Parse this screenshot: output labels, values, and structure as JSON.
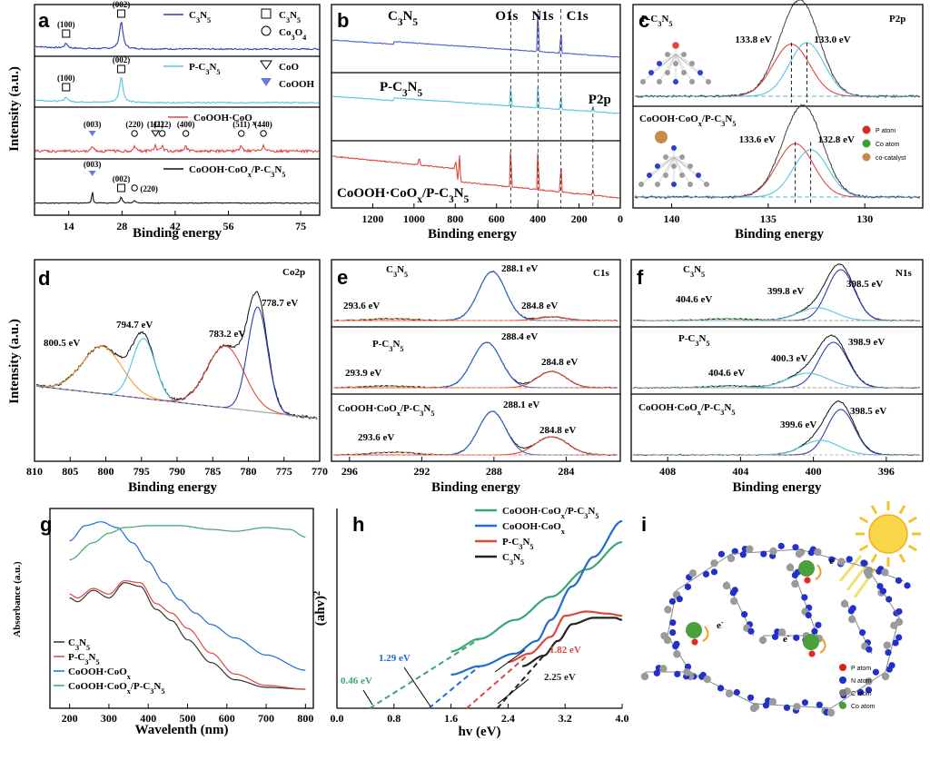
{
  "chart_data": [
    {
      "panel": "a",
      "type": "line",
      "xlabel": "Binding energy",
      "ylabel": "Intensity (a.u.)",
      "xlim": [
        5,
        80
      ],
      "xticks": [
        14,
        28,
        42,
        56,
        75
      ],
      "xticks_label": [
        "14",
        "28",
        "42",
        "56",
        "75"
      ],
      "stacks": [
        {
          "series": "C3N5",
          "color": "#2b3fb0",
          "peaks": [
            {
              "x": 13.3,
              "label": "(100)",
              "marker": "square"
            },
            {
              "x": 27.8,
              "label": "(002)",
              "marker": "square"
            }
          ],
          "legend": [
            {
              "text": "C3N5",
              "line": true
            },
            {
              "text": "C3N5",
              "marker": "square"
            },
            {
              "text": "Co3O4",
              "marker": "circle"
            }
          ]
        },
        {
          "series": "P-C3N5",
          "color": "#58c3e0",
          "peaks": [
            {
              "x": 13.3,
              "label": "(100)",
              "marker": "square"
            },
            {
              "x": 27.8,
              "label": "(002)",
              "marker": "square"
            }
          ],
          "legend": [
            {
              "text": "P-C3N5",
              "line": true
            },
            {
              "text": "CoO",
              "marker": "triangle"
            },
            {
              "text": "CoOOH",
              "marker": "triangle-filled"
            }
          ]
        },
        {
          "series": "CoOOH·CoOx",
          "color": "#e0463f",
          "peaks": [
            {
              "x": 20.2,
              "label": "(003)"
            },
            {
              "x": 31.3,
              "label": "(220)"
            },
            {
              "x": 36.8,
              "label": "(111)"
            },
            {
              "x": 38.6,
              "label": "(222)"
            },
            {
              "x": 44.8,
              "label": "(400)"
            },
            {
              "x": 59.4,
              "label": "(511)"
            },
            {
              "x": 65.2,
              "label": "(440)"
            }
          ],
          "legend": [
            {
              "text": "CoOOH·CoOx",
              "line": true
            }
          ]
        },
        {
          "series": "CoOOH·CoOx/P-C3N5",
          "color": "#111111",
          "peaks": [
            {
              "x": 20.2,
              "label": "(003)"
            },
            {
              "x": 27.8,
              "label": "(002)"
            },
            {
              "x": 31.3,
              "label": "(220)"
            }
          ],
          "legend": [
            {
              "text": "CoOOH·CoOx/P-C3N5",
              "line": true
            }
          ]
        }
      ]
    },
    {
      "panel": "b",
      "type": "line",
      "xlabel": "Binding energy",
      "xlim": [
        1400,
        0
      ],
      "xticks": [
        1200,
        1000,
        800,
        600,
        400,
        200,
        0
      ],
      "peak_markers": [
        {
          "x": 531,
          "label": "O1s"
        },
        {
          "x": 399,
          "label": "N1s"
        },
        {
          "x": 288,
          "label": "C1s"
        },
        {
          "x": 133,
          "label": "P2p"
        }
      ],
      "stacks": [
        {
          "series": "C3N5",
          "color": "#4a5fd0"
        },
        {
          "series": "P-C3N5",
          "color": "#58c3e0"
        },
        {
          "series": "CoOOH·CoOx/P-C3N5",
          "color": "#e0463f"
        }
      ]
    },
    {
      "panel": "c",
      "type": "line",
      "region": "P2p",
      "xlabel": "Binding energy",
      "xlim": [
        142,
        127
      ],
      "xticks": [
        140,
        135,
        130
      ],
      "stacks": [
        {
          "series": "P-C3N5",
          "components": [
            {
              "x": 133.8,
              "label": "133.8 eV",
              "color": "#e0463f"
            },
            {
              "x": 133.0,
              "label": "133.0 eV",
              "color": "#58c3e0"
            }
          ]
        },
        {
          "series": "CoOOH·CoOx/P-C3N5",
          "components": [
            {
              "x": 133.6,
              "label": "133.6 eV",
              "color": "#e0463f"
            },
            {
              "x": 132.8,
              "label": "132.8 eV",
              "color": "#58c3e0"
            }
          ]
        }
      ],
      "legend": [
        "P atom",
        "Co atom",
        "co-catalyst"
      ]
    },
    {
      "panel": "d",
      "type": "line",
      "region": "Co2p",
      "xlabel": "Binding energy",
      "ylabel": "Intensity (a.u.)",
      "xlim": [
        810,
        770
      ],
      "xticks": [
        810,
        805,
        800,
        795,
        790,
        785,
        780,
        775,
        770
      ],
      "peaks": [
        {
          "x": 800.5,
          "label": "800.5 eV",
          "color": "#f0a030"
        },
        {
          "x": 794.7,
          "label": "794.7 eV",
          "color": "#58c3e0"
        },
        {
          "x": 783.2,
          "label": "783.2 eV",
          "color": "#e0463f"
        },
        {
          "x": 778.7,
          "label": "778.7 eV",
          "color": "#2b3fb0"
        }
      ]
    },
    {
      "panel": "e",
      "type": "line",
      "region": "C1s",
      "xlabel": "Binding energy",
      "xlim": [
        297,
        281
      ],
      "xticks": [
        296,
        292,
        288,
        284
      ],
      "stacks": [
        {
          "series": "C3N5",
          "peaks": [
            {
              "x": 293.6,
              "label": "293.6 eV"
            },
            {
              "x": 288.1,
              "label": "288.1 eV"
            },
            {
              "x": 284.8,
              "label": "284.8 eV"
            }
          ]
        },
        {
          "series": "P-C3N5",
          "peaks": [
            {
              "x": 293.9,
              "label": "293.9 eV"
            },
            {
              "x": 288.4,
              "label": "288.4 eV"
            },
            {
              "x": 284.8,
              "label": "284.8 eV"
            }
          ]
        },
        {
          "series": "CoOOH·CoOx/P-C3N5",
          "peaks": [
            {
              "x": 293.6,
              "label": "293.6 eV"
            },
            {
              "x": 288.1,
              "label": "288.1 eV"
            },
            {
              "x": 284.8,
              "label": "284.8 eV"
            }
          ]
        }
      ]
    },
    {
      "panel": "f",
      "type": "line",
      "region": "N1s",
      "xlabel": "Binding energy",
      "xlim": [
        410,
        394
      ],
      "xticks": [
        408,
        404,
        400,
        396
      ],
      "stacks": [
        {
          "series": "C3N5",
          "peaks": [
            {
              "x": 404.6,
              "label": "404.6 eV"
            },
            {
              "x": 399.8,
              "label": "399.8 eV"
            },
            {
              "x": 398.5,
              "label": "398.5 eV"
            }
          ]
        },
        {
          "series": "P-C3N5",
          "peaks": [
            {
              "x": 404.6,
              "label": "404.6 eV"
            },
            {
              "x": 400.3,
              "label": "400.3 eV"
            },
            {
              "x": 398.9,
              "label": "398.9 eV"
            }
          ]
        },
        {
          "series": "CoOOH·CoOx/P-C3N5",
          "peaks": [
            {
              "x": 399.6,
              "label": "399.6 eV"
            },
            {
              "x": 398.5,
              "label": "398.5 eV"
            }
          ]
        }
      ]
    },
    {
      "panel": "g",
      "type": "line",
      "xlabel": "Wavelenth (nm)",
      "ylabel": "Absorbance (a.u.)",
      "xlim": [
        150,
        820
      ],
      "xticks": [
        200,
        300,
        400,
        500,
        600,
        700,
        800
      ],
      "series": [
        {
          "name": "C3N5",
          "color": "#333333",
          "x": [
            200,
            220,
            260,
            300,
            340,
            380,
            420,
            460,
            500,
            560,
            620,
            700,
            800
          ],
          "y": [
            0.58,
            0.56,
            0.62,
            0.58,
            0.66,
            0.64,
            0.52,
            0.46,
            0.36,
            0.24,
            0.15,
            0.11,
            0.1
          ]
        },
        {
          "name": "P-C3N5",
          "color": "#e0463f",
          "x": [
            200,
            220,
            260,
            300,
            340,
            380,
            420,
            460,
            500,
            560,
            620,
            700,
            800
          ],
          "y": [
            0.6,
            0.58,
            0.63,
            0.6,
            0.67,
            0.66,
            0.55,
            0.5,
            0.42,
            0.29,
            0.18,
            0.12,
            0.1
          ]
        },
        {
          "name": "CoOOH·CoOx",
          "color": "#1f6bd0",
          "x": [
            200,
            240,
            280,
            320,
            360,
            400,
            440,
            480,
            520,
            560,
            620,
            700,
            800
          ],
          "y": [
            0.88,
            0.96,
            0.98,
            0.95,
            0.87,
            0.77,
            0.66,
            0.57,
            0.5,
            0.44,
            0.37,
            0.28,
            0.2
          ]
        },
        {
          "name": "CoOOH·CoOx/P-C3N5",
          "color": "#3aa772",
          "x": [
            200,
            260,
            300,
            340,
            400,
            480,
            560,
            620,
            700,
            760,
            800
          ],
          "y": [
            0.78,
            0.87,
            0.92,
            0.95,
            0.96,
            0.96,
            0.94,
            0.93,
            0.95,
            0.94,
            0.9
          ]
        }
      ]
    },
    {
      "panel": "h",
      "type": "line",
      "xlabel": "hv (eV)",
      "ylabel": "(ahv)2",
      "xlim": [
        0.0,
        4.0
      ],
      "xticks": [
        0.0,
        0.8,
        1.6,
        2.4,
        3.2,
        4.0
      ],
      "xticks_label": [
        "0.0",
        "0.8",
        "1.6",
        "2.4",
        "3.2",
        "4.0"
      ],
      "series": [
        {
          "name": "CoOOH·CoOx/P-C3N5",
          "color": "#3aa772",
          "x": [
            1.6,
            2.0,
            2.5,
            3.0,
            3.5,
            4.0
          ],
          "y": [
            0.27,
            0.33,
            0.42,
            0.53,
            0.66,
            0.79
          ],
          "band_gap": 0.46,
          "band_gap_label": "0.46 eV"
        },
        {
          "name": "CoOOH·CoOx",
          "color": "#1f6bd0",
          "x": [
            1.6,
            2.0,
            2.5,
            2.8,
            3.0,
            3.3,
            3.6,
            4.0
          ],
          "y": [
            0.16,
            0.2,
            0.26,
            0.32,
            0.42,
            0.58,
            0.72,
            0.89
          ],
          "band_gap": 1.29,
          "band_gap_label": "1.29 eV"
        },
        {
          "name": "P-C3N5",
          "color": "#e0463f",
          "x": [
            2.4,
            2.7,
            3.0,
            3.2,
            3.5,
            3.8,
            4.0
          ],
          "y": [
            0.22,
            0.26,
            0.34,
            0.44,
            0.46,
            0.45,
            0.44
          ],
          "band_gap": 1.82,
          "band_gap_label": "1.82 eV"
        },
        {
          "name": "C3N5",
          "color": "#222222",
          "x": [
            2.6,
            2.9,
            3.1,
            3.3,
            3.6,
            3.9,
            4.0
          ],
          "y": [
            0.2,
            0.25,
            0.32,
            0.4,
            0.43,
            0.43,
            0.42
          ],
          "band_gap": 2.25,
          "band_gap_label": "2.25 eV"
        }
      ]
    },
    {
      "panel": "i",
      "type": "diagram",
      "legend": [
        "P atom",
        "N atom",
        "C atom",
        "Co atom"
      ],
      "labels": [
        "e-",
        "e-",
        "e-",
        "e-"
      ]
    }
  ]
}
